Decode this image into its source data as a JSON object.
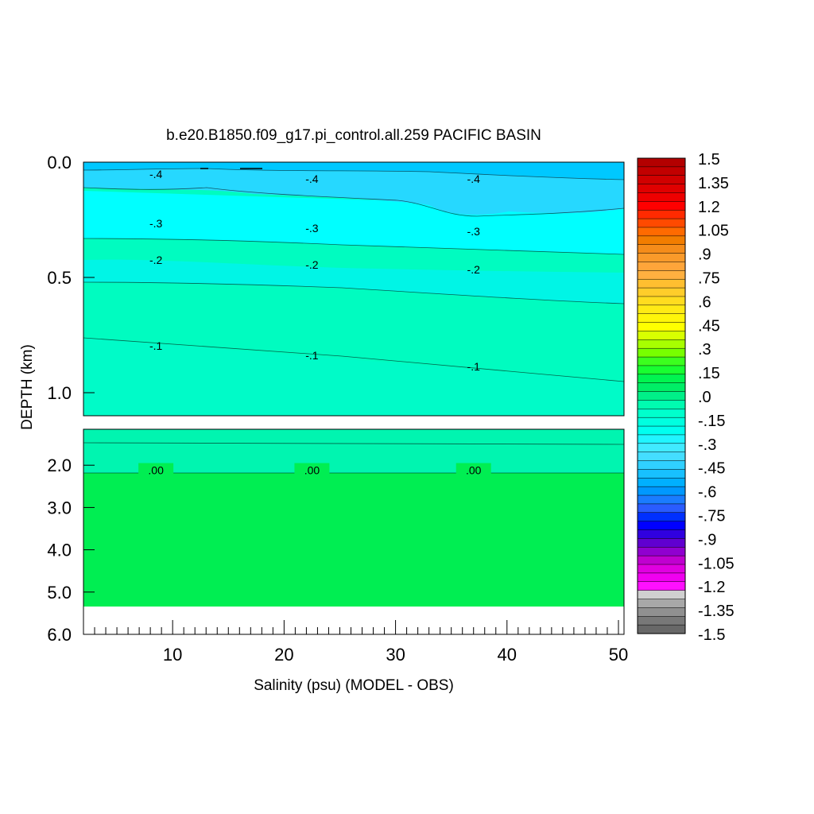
{
  "chart_data": {
    "type": "contour",
    "title": "b.e20.B1850.f09_g17.pi_control.all.259 PACIFIC BASIN",
    "xlabel": "Salinity (psu) (MODEL - OBS)",
    "ylabel": "DEPTH (km)",
    "xlim": [
      2,
      50.5
    ],
    "x_ticks": [
      "10",
      "20",
      "30",
      "40",
      "50"
    ],
    "y_ticks_upper": [
      "0.0",
      "0.5",
      "1.0"
    ],
    "y_ticks_lower": [
      "2.0",
      "3.0",
      "4.0",
      "5.0",
      "6.0"
    ],
    "upper_panel_ylim": [
      0,
      1.1
    ],
    "lower_panel_ylim": [
      1.15,
      6.0
    ],
    "bottom_depth": 5.35,
    "contours": [
      {
        "level": "-.4",
        "depth": 0.1
      },
      {
        "level": "-.3",
        "depth": 0.3
      },
      {
        "level": "-.2",
        "depth": 0.45
      },
      {
        "level": "-.1",
        "depth": 0.8
      },
      {
        "level": ".00",
        "depth": 2.1
      }
    ],
    "contour_label_x": [
      8.5,
      22.5,
      37
    ],
    "colorbar": {
      "labels": [
        "1.5",
        "1.35",
        "1.2",
        "1.05",
        ".9",
        ".75",
        ".6",
        ".45",
        ".3",
        ".15",
        ".0",
        "-.15",
        "-.3",
        "-.45",
        "-.6",
        "-.75",
        "-.9",
        "-1.05",
        "-1.2",
        "-1.35",
        "-1.5"
      ],
      "colors": [
        "#b30000",
        "#c20000",
        "#d10000",
        "#e00000",
        "#ee0000",
        "#ff0000",
        "#ff2a00",
        "#ff4a00",
        "#ff6a00",
        "#f27d00",
        "#f58c1a",
        "#fa9a2a",
        "#ffa53a",
        "#ffb040",
        "#ffbf30",
        "#ffcd2a",
        "#ffdc1f",
        "#ffea15",
        "#fff50a",
        "#ffff00",
        "#d8ff00",
        "#a8ff00",
        "#78ff00",
        "#3cff1e",
        "#18ff30",
        "#00f550",
        "#00ee66",
        "#00f088",
        "#00fbb0",
        "#00ffcc",
        "#00ffe0",
        "#00fff0",
        "#20f5ff",
        "#40eaff",
        "#44deff",
        "#30d0ff",
        "#18c0ff",
        "#00b0ff",
        "#0098ff",
        "#1a7cff",
        "#2a5cff",
        "#0030ff",
        "#0000ff",
        "#3000e0",
        "#6000d0",
        "#9000d0",
        "#c000d0",
        "#e000e0",
        "#f000f0",
        "#ff10ff",
        "#d0d0d0",
        "#a8a8a8",
        "#909090",
        "#787878",
        "#686868"
      ]
    },
    "fill_colors": {
      "near_surface": "#26d8ff",
      "surface_band": "#00c8ff",
      "minus_03": "#00ffff",
      "minus_02": "#00f5e6",
      "minus_01": "#00fbc8",
      "mid": "#00fcc0",
      "deep": "#00ee52",
      "lower_cyan": "#00f5b0"
    }
  }
}
